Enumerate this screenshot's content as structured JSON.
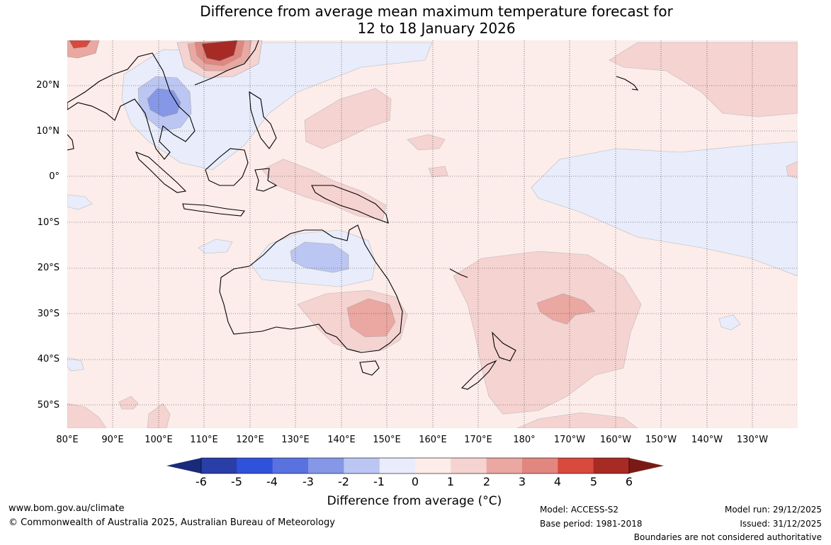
{
  "title": {
    "line1": "Difference from average mean maximum temperature forecast for",
    "line2": "12 to 18 January 2026"
  },
  "map": {
    "lat_labels": [
      "20°N",
      "10°N",
      "0°",
      "10°S",
      "20°S",
      "30°S",
      "40°S",
      "50°S"
    ],
    "lon_labels": [
      "80°E",
      "90°E",
      "100°E",
      "110°E",
      "120°E",
      "130°E",
      "140°E",
      "150°E",
      "160°E",
      "170°E",
      "180°",
      "170°W",
      "160°W",
      "150°W",
      "140°W",
      "130°W"
    ]
  },
  "colorbar": {
    "ticks": [
      "-6",
      "-5",
      "-4",
      "-3",
      "-2",
      "-1",
      "0",
      "1",
      "2",
      "3",
      "4",
      "5",
      "6"
    ],
    "colors": [
      "#2a3ea8",
      "#3052da",
      "#5a72e0",
      "#8597e6",
      "#bcc6f2",
      "#e8ecfb",
      "#fcecea",
      "#f5d3d0",
      "#eba7a1",
      "#e18780",
      "#d9493e",
      "#a82a24"
    ],
    "low_extend_color": "#1a2a7a",
    "high_extend_color": "#7a1a16",
    "title": "Difference from average (°C)"
  },
  "footer": {
    "website": "www.bom.gov.au/climate",
    "copyright": "© Commonwealth of Australia 2025, Australian Bureau of Meteorology",
    "model": "Model: ACCESS-S2",
    "base_period": "Base period: 1981-2018",
    "model_run": "Model run: 29/12/2025",
    "issued": "Issued: 31/12/2025",
    "disclaimer": "Boundaries are not considered authoritative"
  }
}
